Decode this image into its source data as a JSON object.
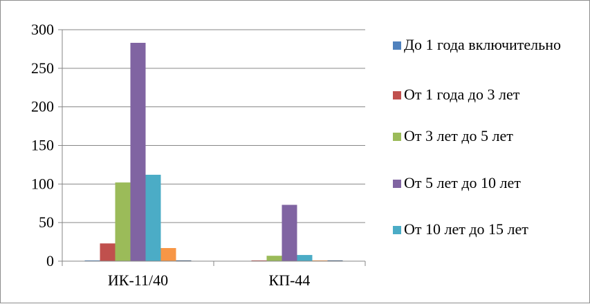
{
  "chart_data": {
    "type": "bar",
    "categories": [
      "ИК-11/40",
      "КП-44"
    ],
    "series": [
      {
        "name": "До 1 года включительно",
        "color": "#4f81bd",
        "values": [
          1,
          0
        ]
      },
      {
        "name": "От 1 года до 3 лет",
        "color": "#c0504d",
        "values": [
          23,
          1
        ]
      },
      {
        "name": "От 3 лет до 5 лет",
        "color": "#9bbb59",
        "values": [
          102,
          7
        ]
      },
      {
        "name": "От 5 лет до 10 лет",
        "color": "#8064a2",
        "values": [
          283,
          73
        ]
      },
      {
        "name": "От 10 лет до 15 лет",
        "color": "#4bacc6",
        "values": [
          112,
          8
        ]
      },
      {
        "name": "",
        "color": "#f79646",
        "values": [
          17,
          1
        ]
      },
      {
        "name": "",
        "color": "#2c4d75",
        "values": [
          1,
          1
        ]
      }
    ],
    "ylim": [
      0,
      300
    ],
    "yticks": [
      0,
      50,
      100,
      150,
      200,
      250,
      300
    ],
    "grid": true,
    "legend_position": "right",
    "legend_entries": [
      "До 1 года включительно",
      "От 1 года до 3 лет",
      "От 3 лет до 5 лет",
      "От 5 лет до 10 лет",
      "От 10 лет до 15 лет"
    ]
  }
}
